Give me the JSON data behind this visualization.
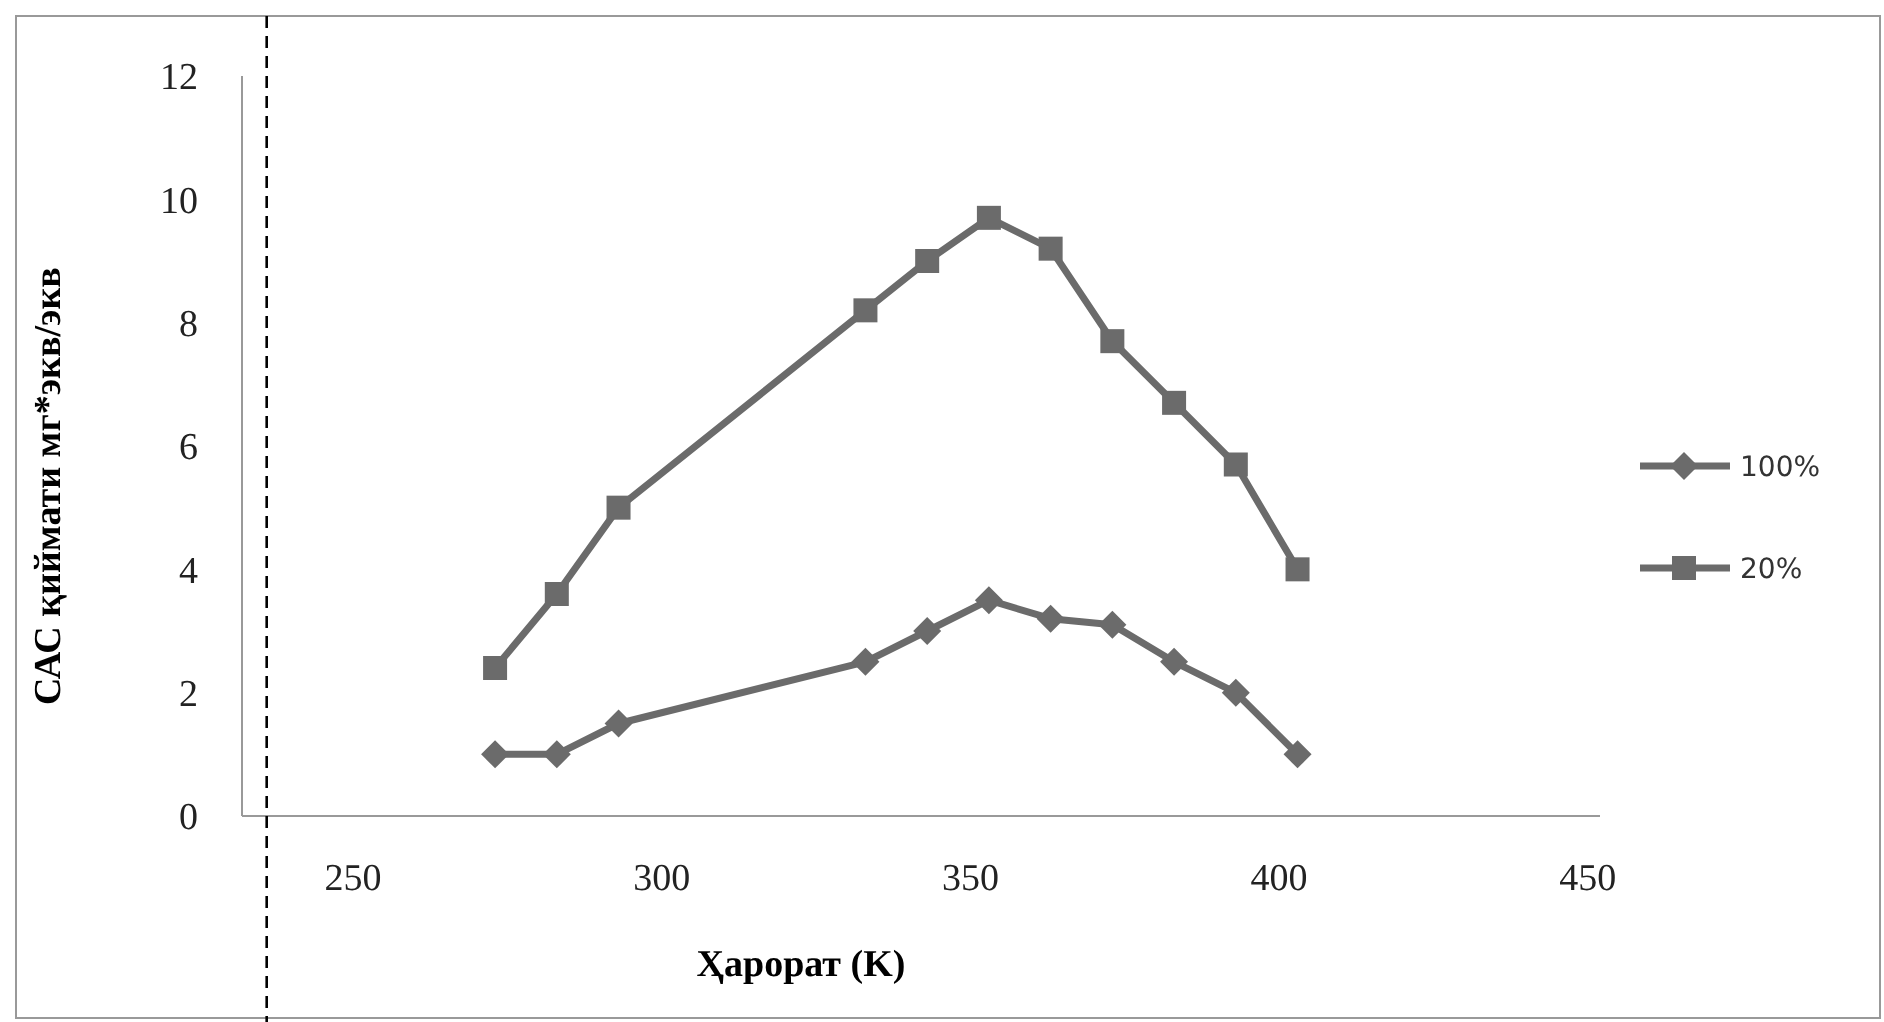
{
  "chart_data": {
    "type": "line",
    "xlabel": "Ҳарорат  (K)",
    "ylabel": "САС қиймати мг*экв/экв",
    "x": [
      273,
      283,
      293,
      333,
      343,
      353,
      363,
      373,
      383,
      393,
      403
    ],
    "series": [
      {
        "name": "100%",
        "color": "#6b6b6b",
        "marker": "diamond",
        "values": [
          1.0,
          1.0,
          1.5,
          2.5,
          3.0,
          3.5,
          3.2,
          3.1,
          2.5,
          2.0,
          1.0
        ]
      },
      {
        "name": "20%",
        "color": "#6b6b6b",
        "marker": "square",
        "values": [
          2.4,
          3.6,
          5.0,
          8.2,
          9.0,
          9.7,
          9.2,
          7.7,
          6.7,
          5.7,
          4.0
        ]
      }
    ],
    "xlim": [
      232,
      452
    ],
    "xticks": [
      250,
      300,
      350,
      400,
      450
    ],
    "ylim": [
      0,
      12
    ],
    "yticks": [
      0,
      2,
      4,
      6,
      8,
      10,
      12
    ],
    "ref_lines": [
      {
        "axis": "x",
        "value": 236,
        "color": "#000000",
        "line_style": "dashed"
      }
    ],
    "legend": "right",
    "grid": false,
    "line_style": "solid"
  }
}
